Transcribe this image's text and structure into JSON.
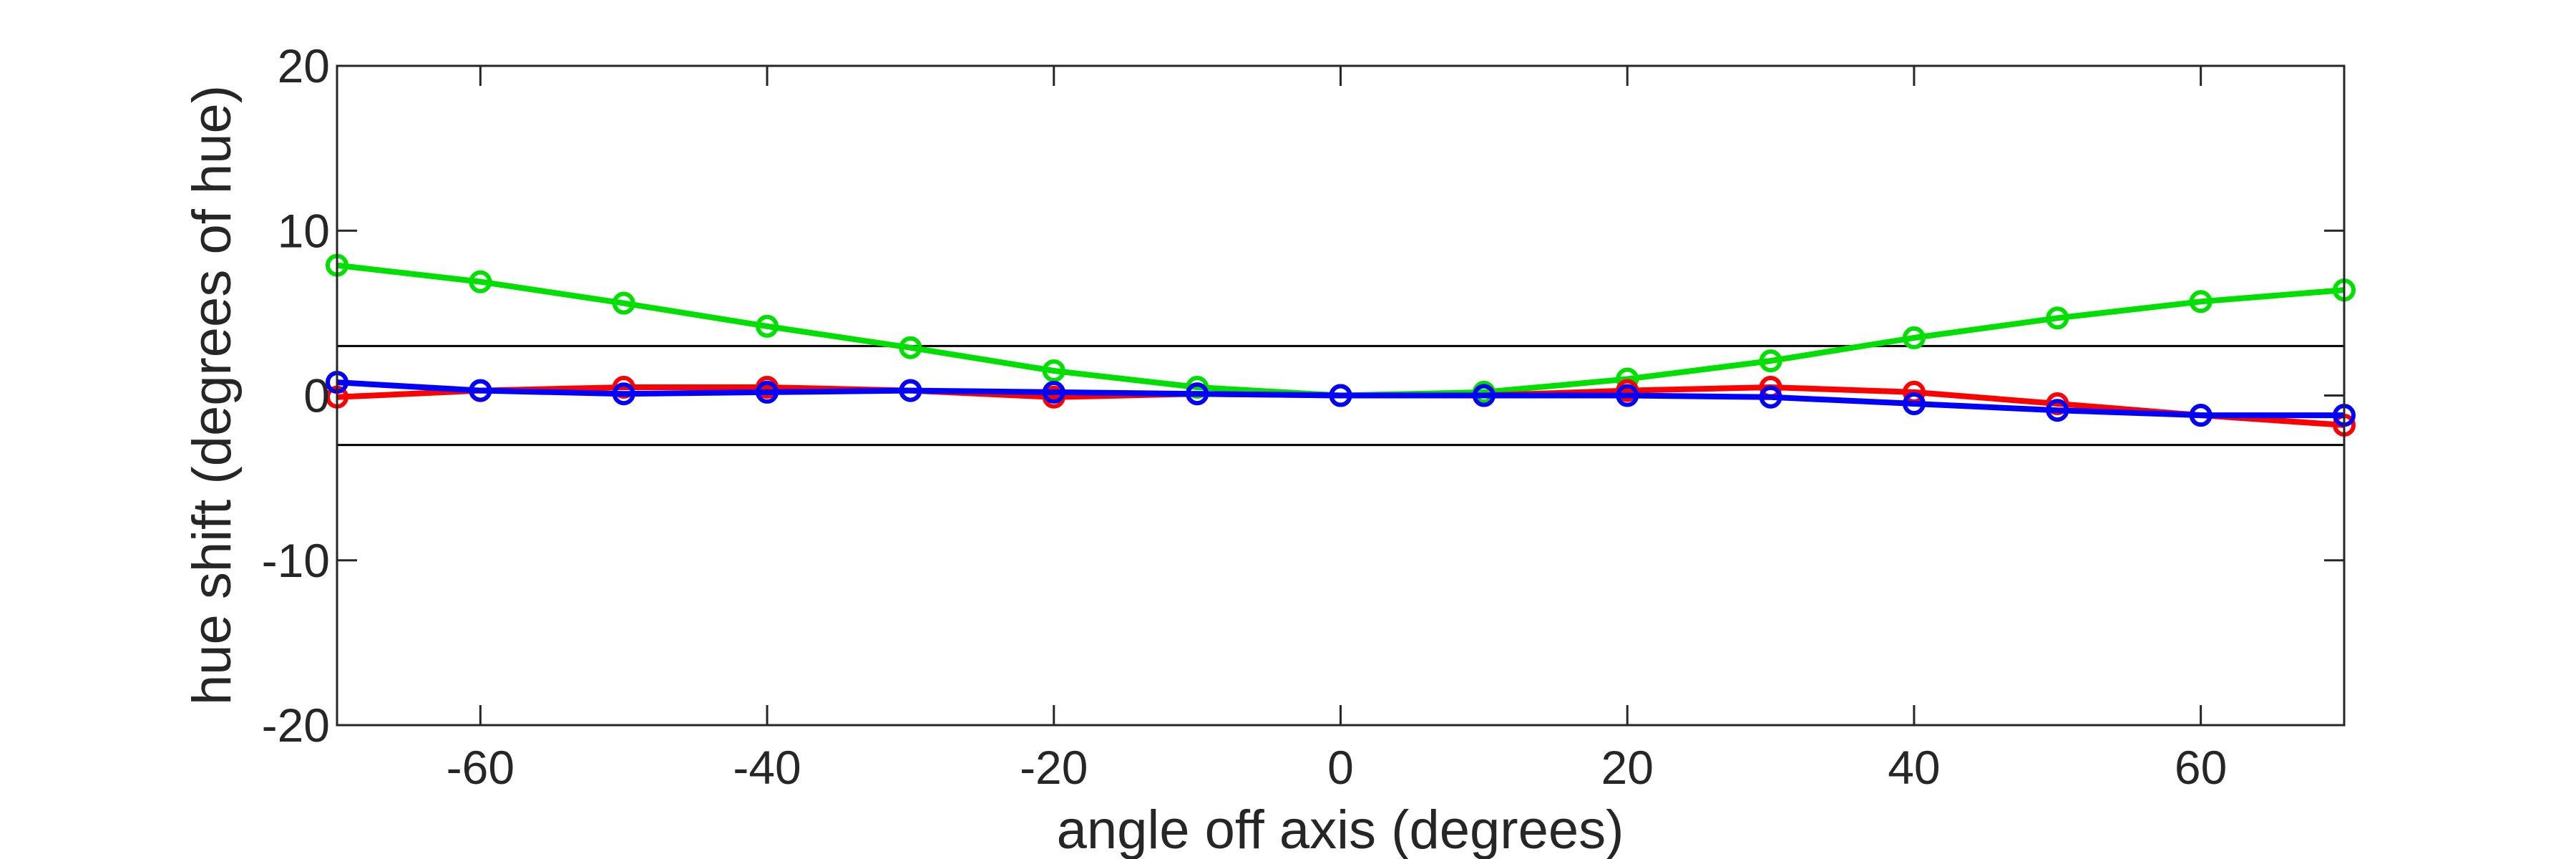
{
  "chart_data": {
    "type": "line",
    "title": "",
    "xlabel": "angle off axis (degrees)",
    "ylabel": "hue shift (degrees of hue)",
    "xlim": [
      -70,
      70
    ],
    "ylim": [
      -20,
      20
    ],
    "xticks": [
      -60,
      -40,
      -20,
      0,
      20,
      40,
      60
    ],
    "yticks": [
      -20,
      -10,
      0,
      10,
      20
    ],
    "grid": false,
    "legend": "none",
    "x": [
      -70,
      -60,
      -50,
      -40,
      -30,
      -20,
      -10,
      0,
      10,
      20,
      30,
      40,
      50,
      60,
      70
    ],
    "series": [
      {
        "color": "#00e000",
        "values": [
          7.9,
          6.9,
          5.6,
          4.2,
          2.9,
          1.5,
          0.5,
          0.0,
          0.2,
          1.0,
          2.1,
          3.5,
          4.7,
          5.7,
          6.4
        ]
      },
      {
        "color": "#ff0000",
        "values": [
          -0.1,
          0.3,
          0.5,
          0.5,
          0.3,
          -0.1,
          0.1,
          0.0,
          0.0,
          0.3,
          0.5,
          0.2,
          -0.5,
          -1.2,
          -1.8
        ]
      },
      {
        "color": "#0000ff",
        "values": [
          0.8,
          0.3,
          0.1,
          0.2,
          0.3,
          0.2,
          0.1,
          0.0,
          0.0,
          0.0,
          -0.1,
          -0.5,
          -0.9,
          -1.2,
          -1.2
        ]
      }
    ],
    "reference_lines": [
      3,
      -3
    ]
  }
}
